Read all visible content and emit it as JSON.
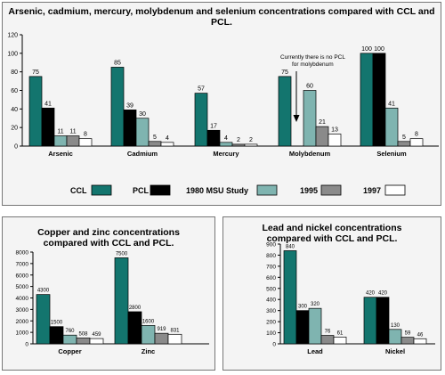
{
  "palette": {
    "ccl": "#13756e",
    "pcl": "#000000",
    "msu": "#7fb4b0",
    "y1995": "#8a8a8a",
    "y1997": "#ffffff"
  },
  "legend": [
    "CCL",
    "PCL",
    "1980 MSU Study",
    "1995",
    "1997"
  ],
  "chart_data": [
    {
      "type": "bar",
      "title": "Arsenic, cadmium, mercury, molybdenum and selenium concentrations compared with CCL and PCL.",
      "categories": [
        "Arsenic",
        "Cadmium",
        "Mercury",
        "Molybdenum",
        "Selenium"
      ],
      "ylim": [
        0,
        120
      ],
      "yticks": [
        0,
        20,
        40,
        60,
        80,
        100,
        120
      ],
      "grid": false,
      "series": [
        {
          "name": "CCL",
          "values": [
            75,
            85,
            57,
            75,
            100
          ]
        },
        {
          "name": "PCL",
          "values": [
            41,
            39,
            17,
            null,
            100
          ]
        },
        {
          "name": "1980 MSU Study",
          "values": [
            11,
            30,
            4,
            60,
            41
          ]
        },
        {
          "name": "1995",
          "values": [
            11,
            5,
            2,
            21,
            5
          ]
        },
        {
          "name": "1997",
          "values": [
            8,
            4,
            2,
            13,
            8
          ]
        }
      ],
      "annotation": "Currently there is no PCL for molybdenum"
    },
    {
      "type": "bar",
      "title": "Copper and zinc concentrations compared with CCL and PCL.",
      "categories": [
        "Copper",
        "Zinc"
      ],
      "ylim": [
        0,
        8000
      ],
      "yticks": [
        0,
        1000,
        2000,
        3000,
        4000,
        5000,
        6000,
        7000,
        8000
      ],
      "grid": false,
      "series": [
        {
          "name": "CCL",
          "values": [
            4300,
            7500
          ]
        },
        {
          "name": "PCL",
          "values": [
            1500,
            2800
          ]
        },
        {
          "name": "1980 MSU Study",
          "values": [
            760,
            1600
          ]
        },
        {
          "name": "1995",
          "values": [
            508,
            919
          ]
        },
        {
          "name": "1997",
          "values": [
            459,
            831
          ]
        }
      ]
    },
    {
      "type": "bar",
      "title": "Lead and nickel concentrations compared with CCL and PCL.",
      "categories": [
        "Lead",
        "Nickel"
      ],
      "ylim": [
        0,
        900
      ],
      "yticks": [
        0,
        100,
        200,
        300,
        400,
        500,
        600,
        700,
        800,
        900
      ],
      "grid": false,
      "series": [
        {
          "name": "CCL",
          "values": [
            840,
            420
          ]
        },
        {
          "name": "PCL",
          "values": [
            300,
            420
          ]
        },
        {
          "name": "1980 MSU Study",
          "values": [
            320,
            130
          ]
        },
        {
          "name": "1995",
          "values": [
            76,
            59
          ]
        },
        {
          "name": "1997",
          "values": [
            61,
            46
          ]
        }
      ]
    }
  ]
}
